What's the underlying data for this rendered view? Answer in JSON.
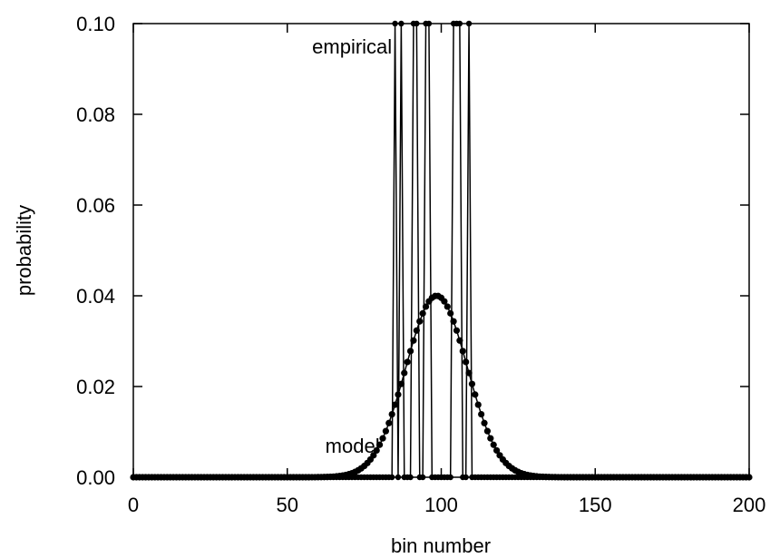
{
  "chart_data": {
    "type": "line",
    "xlabel": "bin number",
    "ylabel": "probability",
    "xlim": [
      0,
      200
    ],
    "ylim": [
      0,
      0.1
    ],
    "x_ticks": [
      0,
      50,
      100,
      150,
      200
    ],
    "y_ticks": [
      "0.00",
      "0.02",
      "0.04",
      "0.06",
      "0.08",
      "0.10"
    ],
    "grid": false,
    "annotations": [
      {
        "text": "empirical",
        "x": 84,
        "y": 0.095
      },
      {
        "text": "model",
        "x": 80,
        "y": 0.007
      }
    ],
    "series": [
      {
        "kind": "gaussian",
        "mean": 98.5,
        "peak": 0.04,
        "sd": 9.97,
        "x_range": [
          0,
          200
        ],
        "marker": "dot"
      },
      {
        "kind": "empirical",
        "x_range": [
          0,
          200
        ],
        "nonzero_bins": [
          85,
          87,
          91,
          92,
          95,
          96,
          104,
          105,
          106,
          109
        ],
        "nonzero_value": 0.1,
        "marker": "dot"
      }
    ]
  }
}
